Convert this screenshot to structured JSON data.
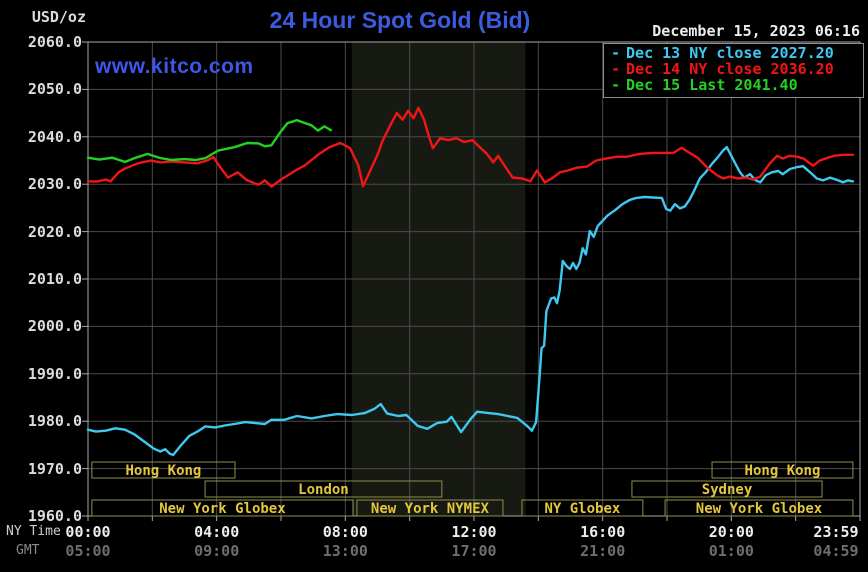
{
  "header": {
    "unit_label": "USD/oz",
    "title": "24 Hour Spot Gold (Bid)",
    "date_text": "December 15, 2023 06:16",
    "watermark": "www.kitco.com"
  },
  "axis": {
    "ny_time_label": "NY Time",
    "gmt_label": "GMT",
    "y_ticks": [
      "2060.0",
      "2050.0",
      "2040.0",
      "2030.0",
      "2020.0",
      "2010.0",
      "2000.0",
      "1990.0",
      "1980.0",
      "1970.0",
      "1960.0"
    ],
    "x_tick_hours": [
      0,
      4,
      8,
      12,
      16,
      20,
      23.983
    ],
    "x_ticks_ny": [
      "00:00",
      "04:00",
      "08:00",
      "12:00",
      "16:00",
      "20:00",
      "23:59"
    ],
    "x_ticks_gmt": [
      "05:00",
      "09:00",
      "13:00",
      "17:00",
      "21:00",
      "01:00",
      "04:59"
    ]
  },
  "colors": {
    "grid": "#4b4b4b",
    "plot_border": "#a8a8a8",
    "highlight_band": "#171a12",
    "session_border": "#8f8f4b",
    "session_text": "#e3c73e",
    "legend_marker_dash": "-"
  },
  "chart_data": {
    "type": "line",
    "title": "24 Hour Spot Gold (Bid)",
    "ylabel": "USD/oz",
    "ylim": [
      1960,
      2060
    ],
    "y_step": 10,
    "xlim_hours": [
      0,
      24
    ],
    "x_grid_step_hours": 2,
    "grid": true,
    "legend_position": "top-right",
    "highlight_band_hours": [
      8.2,
      13.6
    ],
    "legend": [
      {
        "label": "Dec 13 NY close 2027.20",
        "color": "#3fc8f0"
      },
      {
        "label": "Dec 14 NY close 2036.20",
        "color": "#f21515"
      },
      {
        "label": "Dec 15 Last 2041.40",
        "color": "#25d025"
      }
    ],
    "series": [
      {
        "name": "Dec 13 NY close",
        "close": 2027.2,
        "color": "#3fc8f0",
        "points": [
          [
            0,
            1978.2
          ],
          [
            0.25,
            1977.8
          ],
          [
            0.55,
            1978.0
          ],
          [
            0.85,
            1978.5
          ],
          [
            1.15,
            1978.2
          ],
          [
            1.45,
            1977.2
          ],
          [
            1.75,
            1975.7
          ],
          [
            2.05,
            1974.2
          ],
          [
            2.25,
            1973.6
          ],
          [
            2.4,
            1974.1
          ],
          [
            2.55,
            1973.1
          ],
          [
            2.65,
            1972.9
          ],
          [
            2.9,
            1975.0
          ],
          [
            3.15,
            1976.9
          ],
          [
            3.4,
            1977.8
          ],
          [
            3.65,
            1978.9
          ],
          [
            3.95,
            1978.7
          ],
          [
            4.25,
            1979.1
          ],
          [
            4.55,
            1979.4
          ],
          [
            4.9,
            1979.8
          ],
          [
            5.2,
            1979.6
          ],
          [
            5.5,
            1979.4
          ],
          [
            5.7,
            1980.3
          ],
          [
            6.1,
            1980.3
          ],
          [
            6.5,
            1981.1
          ],
          [
            6.95,
            1980.6
          ],
          [
            7.35,
            1981.1
          ],
          [
            7.75,
            1981.5
          ],
          [
            8.2,
            1981.3
          ],
          [
            8.6,
            1981.7
          ],
          [
            8.9,
            1982.6
          ],
          [
            9.1,
            1983.6
          ],
          [
            9.3,
            1981.6
          ],
          [
            9.65,
            1981.1
          ],
          [
            9.9,
            1981.3
          ],
          [
            10.25,
            1979.0
          ],
          [
            10.55,
            1978.4
          ],
          [
            10.85,
            1979.6
          ],
          [
            11.15,
            1979.9
          ],
          [
            11.3,
            1980.9
          ],
          [
            11.6,
            1977.7
          ],
          [
            11.9,
            1980.5
          ],
          [
            12.1,
            1982.0
          ],
          [
            12.45,
            1981.7
          ],
          [
            12.75,
            1981.5
          ],
          [
            13.05,
            1981.1
          ],
          [
            13.35,
            1980.7
          ],
          [
            13.65,
            1979.0
          ],
          [
            13.8,
            1978.0
          ],
          [
            13.93,
            1979.8
          ],
          [
            13.99,
            1985.0
          ],
          [
            14.05,
            1990.3
          ],
          [
            14.1,
            1995.4
          ],
          [
            14.18,
            1995.9
          ],
          [
            14.25,
            2003.2
          ],
          [
            14.32,
            2004.5
          ],
          [
            14.4,
            2005.9
          ],
          [
            14.5,
            2006.1
          ],
          [
            14.58,
            2004.9
          ],
          [
            14.66,
            2007.5
          ],
          [
            14.76,
            2013.8
          ],
          [
            14.88,
            2012.7
          ],
          [
            14.98,
            2012.1
          ],
          [
            15.08,
            2013.4
          ],
          [
            15.18,
            2012.1
          ],
          [
            15.28,
            2013.4
          ],
          [
            15.38,
            2016.5
          ],
          [
            15.48,
            2015.2
          ],
          [
            15.6,
            2020.1
          ],
          [
            15.72,
            2018.9
          ],
          [
            15.85,
            2021.2
          ],
          [
            16.0,
            2022.3
          ],
          [
            16.15,
            2023.4
          ],
          [
            16.38,
            2024.5
          ],
          [
            16.62,
            2025.8
          ],
          [
            16.85,
            2026.7
          ],
          [
            17.05,
            2027.1
          ],
          [
            17.3,
            2027.3
          ],
          [
            17.55,
            2027.2
          ],
          [
            17.84,
            2027.1
          ],
          [
            17.97,
            2024.8
          ],
          [
            18.1,
            2024.4
          ],
          [
            18.25,
            2025.8
          ],
          [
            18.4,
            2024.9
          ],
          [
            18.55,
            2025.3
          ],
          [
            18.7,
            2026.7
          ],
          [
            18.87,
            2029.0
          ],
          [
            19.02,
            2031.2
          ],
          [
            19.2,
            2032.5
          ],
          [
            19.4,
            2034.3
          ],
          [
            19.58,
            2035.7
          ],
          [
            19.74,
            2037.1
          ],
          [
            19.86,
            2037.8
          ],
          [
            20.0,
            2036.0
          ],
          [
            20.12,
            2034.4
          ],
          [
            20.27,
            2032.5
          ],
          [
            20.4,
            2031.4
          ],
          [
            20.58,
            2032.1
          ],
          [
            20.76,
            2030.8
          ],
          [
            20.9,
            2030.4
          ],
          [
            21.07,
            2031.9
          ],
          [
            21.26,
            2032.5
          ],
          [
            21.45,
            2032.8
          ],
          [
            21.6,
            2032.1
          ],
          [
            21.82,
            2033.2
          ],
          [
            22.04,
            2033.6
          ],
          [
            22.23,
            2033.8
          ],
          [
            22.45,
            2032.5
          ],
          [
            22.66,
            2031.2
          ],
          [
            22.85,
            2030.8
          ],
          [
            23.07,
            2031.4
          ],
          [
            23.25,
            2031.0
          ],
          [
            23.47,
            2030.4
          ],
          [
            23.63,
            2030.8
          ],
          [
            23.78,
            2030.6
          ]
        ]
      },
      {
        "name": "Dec 14 NY close",
        "close": 2036.2,
        "color": "#f21515",
        "points": [
          [
            0,
            2030.6
          ],
          [
            0.3,
            2030.6
          ],
          [
            0.55,
            2031.0
          ],
          [
            0.7,
            2030.6
          ],
          [
            0.95,
            2032.5
          ],
          [
            1.15,
            2033.3
          ],
          [
            1.55,
            2034.4
          ],
          [
            1.95,
            2035.0
          ],
          [
            2.25,
            2034.6
          ],
          [
            2.6,
            2034.8
          ],
          [
            3.0,
            2034.6
          ],
          [
            3.4,
            2034.4
          ],
          [
            3.7,
            2035.0
          ],
          [
            3.9,
            2035.7
          ],
          [
            4.1,
            2033.7
          ],
          [
            4.35,
            2031.4
          ],
          [
            4.65,
            2032.5
          ],
          [
            4.95,
            2030.8
          ],
          [
            5.3,
            2029.9
          ],
          [
            5.5,
            2030.8
          ],
          [
            5.7,
            2029.5
          ],
          [
            6.05,
            2031.2
          ],
          [
            6.45,
            2032.9
          ],
          [
            6.75,
            2034.0
          ],
          [
            7.15,
            2036.2
          ],
          [
            7.5,
            2037.8
          ],
          [
            7.85,
            2038.7
          ],
          [
            8.15,
            2037.6
          ],
          [
            8.4,
            2034.0
          ],
          [
            8.55,
            2029.6
          ],
          [
            8.75,
            2032.5
          ],
          [
            9.0,
            2036.2
          ],
          [
            9.15,
            2039.0
          ],
          [
            9.4,
            2042.5
          ],
          [
            9.6,
            2045.0
          ],
          [
            9.78,
            2043.6
          ],
          [
            9.95,
            2045.5
          ],
          [
            10.12,
            2043.9
          ],
          [
            10.27,
            2046.1
          ],
          [
            10.45,
            2043.6
          ],
          [
            10.57,
            2040.7
          ],
          [
            10.72,
            2037.6
          ],
          [
            10.95,
            2039.7
          ],
          [
            11.2,
            2039.3
          ],
          [
            11.45,
            2039.7
          ],
          [
            11.7,
            2038.9
          ],
          [
            11.95,
            2039.3
          ],
          [
            12.18,
            2037.8
          ],
          [
            12.4,
            2036.4
          ],
          [
            12.6,
            2034.6
          ],
          [
            12.75,
            2036.0
          ],
          [
            12.9,
            2034.4
          ],
          [
            13.2,
            2031.4
          ],
          [
            13.5,
            2031.2
          ],
          [
            13.75,
            2030.6
          ],
          [
            13.96,
            2032.9
          ],
          [
            14.2,
            2030.4
          ],
          [
            14.42,
            2031.2
          ],
          [
            14.67,
            2032.5
          ],
          [
            14.92,
            2032.9
          ],
          [
            15.2,
            2033.5
          ],
          [
            15.5,
            2033.7
          ],
          [
            15.8,
            2035.0
          ],
          [
            16.1,
            2035.4
          ],
          [
            16.45,
            2035.8
          ],
          [
            16.75,
            2035.8
          ],
          [
            17.15,
            2036.4
          ],
          [
            17.55,
            2036.6
          ],
          [
            17.95,
            2036.6
          ],
          [
            18.2,
            2036.6
          ],
          [
            18.45,
            2037.7
          ],
          [
            18.7,
            2036.6
          ],
          [
            18.95,
            2035.6
          ],
          [
            19.25,
            2033.5
          ],
          [
            19.55,
            2031.9
          ],
          [
            19.75,
            2031.2
          ],
          [
            19.95,
            2031.6
          ],
          [
            20.2,
            2031.2
          ],
          [
            20.45,
            2031.4
          ],
          [
            20.67,
            2031.0
          ],
          [
            20.9,
            2031.6
          ],
          [
            21.2,
            2034.4
          ],
          [
            21.42,
            2036.0
          ],
          [
            21.6,
            2035.4
          ],
          [
            21.8,
            2036.0
          ],
          [
            22.05,
            2035.8
          ],
          [
            22.25,
            2035.4
          ],
          [
            22.4,
            2034.6
          ],
          [
            22.55,
            2033.9
          ],
          [
            22.75,
            2035.0
          ],
          [
            23.0,
            2035.6
          ],
          [
            23.2,
            2036.0
          ],
          [
            23.45,
            2036.2
          ],
          [
            23.78,
            2036.2
          ]
        ]
      },
      {
        "name": "Dec 15 Last",
        "last": 2041.4,
        "color": "#25d025",
        "points": [
          [
            0,
            2035.6
          ],
          [
            0.35,
            2035.2
          ],
          [
            0.75,
            2035.6
          ],
          [
            1.15,
            2034.7
          ],
          [
            1.45,
            2035.5
          ],
          [
            1.85,
            2036.4
          ],
          [
            2.25,
            2035.5
          ],
          [
            2.6,
            2035.1
          ],
          [
            3.0,
            2035.3
          ],
          [
            3.35,
            2035.1
          ],
          [
            3.65,
            2035.5
          ],
          [
            4.05,
            2037.1
          ],
          [
            4.55,
            2037.8
          ],
          [
            4.95,
            2038.7
          ],
          [
            5.3,
            2038.6
          ],
          [
            5.5,
            2038.0
          ],
          [
            5.7,
            2038.2
          ],
          [
            5.95,
            2040.7
          ],
          [
            6.2,
            2042.9
          ],
          [
            6.5,
            2043.5
          ],
          [
            6.75,
            2042.9
          ],
          [
            6.95,
            2042.4
          ],
          [
            7.15,
            2041.3
          ],
          [
            7.35,
            2042.2
          ],
          [
            7.55,
            2041.4
          ]
        ]
      }
    ],
    "sessions": [
      {
        "row": 0,
        "label": "Hong Kong",
        "hours": [
          0.12,
          4.57
        ]
      },
      {
        "row": 0,
        "label": "Hong Kong",
        "hours": [
          19.4,
          23.78
        ]
      },
      {
        "row": 1,
        "label": "London",
        "hours": [
          3.64,
          11.0
        ]
      },
      {
        "row": 1,
        "label": "Sydney",
        "hours": [
          16.91,
          22.82
        ]
      },
      {
        "row": 2,
        "label": "New York Globex",
        "hours": [
          0.12,
          8.24
        ]
      },
      {
        "row": 2,
        "label": "New York NYMEX",
        "hours": [
          8.36,
          12.9
        ]
      },
      {
        "row": 2,
        "label": "NY Globex",
        "hours": [
          13.49,
          17.25
        ]
      },
      {
        "row": 2,
        "label": "New York Globex",
        "hours": [
          17.94,
          23.78
        ]
      }
    ]
  }
}
